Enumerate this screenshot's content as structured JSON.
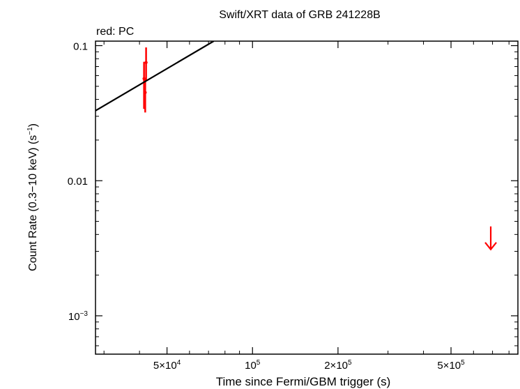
{
  "chart_data": {
    "type": "scatter",
    "title": "Swift/XRT data of GRB 241228B",
    "subtitle": "red: PC",
    "xlabel": "Time since Fermi/GBM trigger (s)",
    "ylabel_main": "Count Rate (0.3−10 keV) (s",
    "ylabel_sup": "−1",
    "ylabel_close": ")",
    "xscale": "log",
    "yscale": "log",
    "xlim": [
      28000,
      860000
    ],
    "ylim": [
      0.00052,
      0.108
    ],
    "colors": {
      "pc": "#ff0000",
      "model": "#000000",
      "axes": "#000000"
    },
    "x_ticks": [
      {
        "value": 50000,
        "mantissa": "5×10",
        "exp": "4"
      },
      {
        "value": 100000,
        "mantissa": "10",
        "exp": "5"
      },
      {
        "value": 200000,
        "mantissa": "2×10",
        "exp": "5"
      },
      {
        "value": 500000,
        "mantissa": "5×10",
        "exp": "5"
      }
    ],
    "y_ticks": [
      {
        "value": 0.1,
        "mantissa": "0.1",
        "exp": ""
      },
      {
        "value": 0.01,
        "mantissa": "0.01",
        "exp": ""
      },
      {
        "value": 0.001,
        "mantissa": "10",
        "exp": "−3"
      }
    ],
    "series": [
      {
        "kind": "points",
        "color": "#ff0000",
        "points": [
          {
            "x": 41500,
            "y": 0.057,
            "ylo": 0.034,
            "yhi": 0.076
          },
          {
            "x": 41900,
            "y": 0.045,
            "ylo": 0.032,
            "yhi": 0.057
          },
          {
            "x": 42200,
            "y": 0.075,
            "ylo": 0.055,
            "yhi": 0.097
          }
        ]
      },
      {
        "kind": "upper_limits",
        "color": "#ff0000",
        "points": [
          {
            "x": 690000,
            "y": 0.0031
          }
        ]
      },
      {
        "kind": "model_line",
        "color": "#000000",
        "points": [
          {
            "x": 28000,
            "y": 0.033
          },
          {
            "x": 73000,
            "y": 0.108
          }
        ]
      }
    ]
  }
}
